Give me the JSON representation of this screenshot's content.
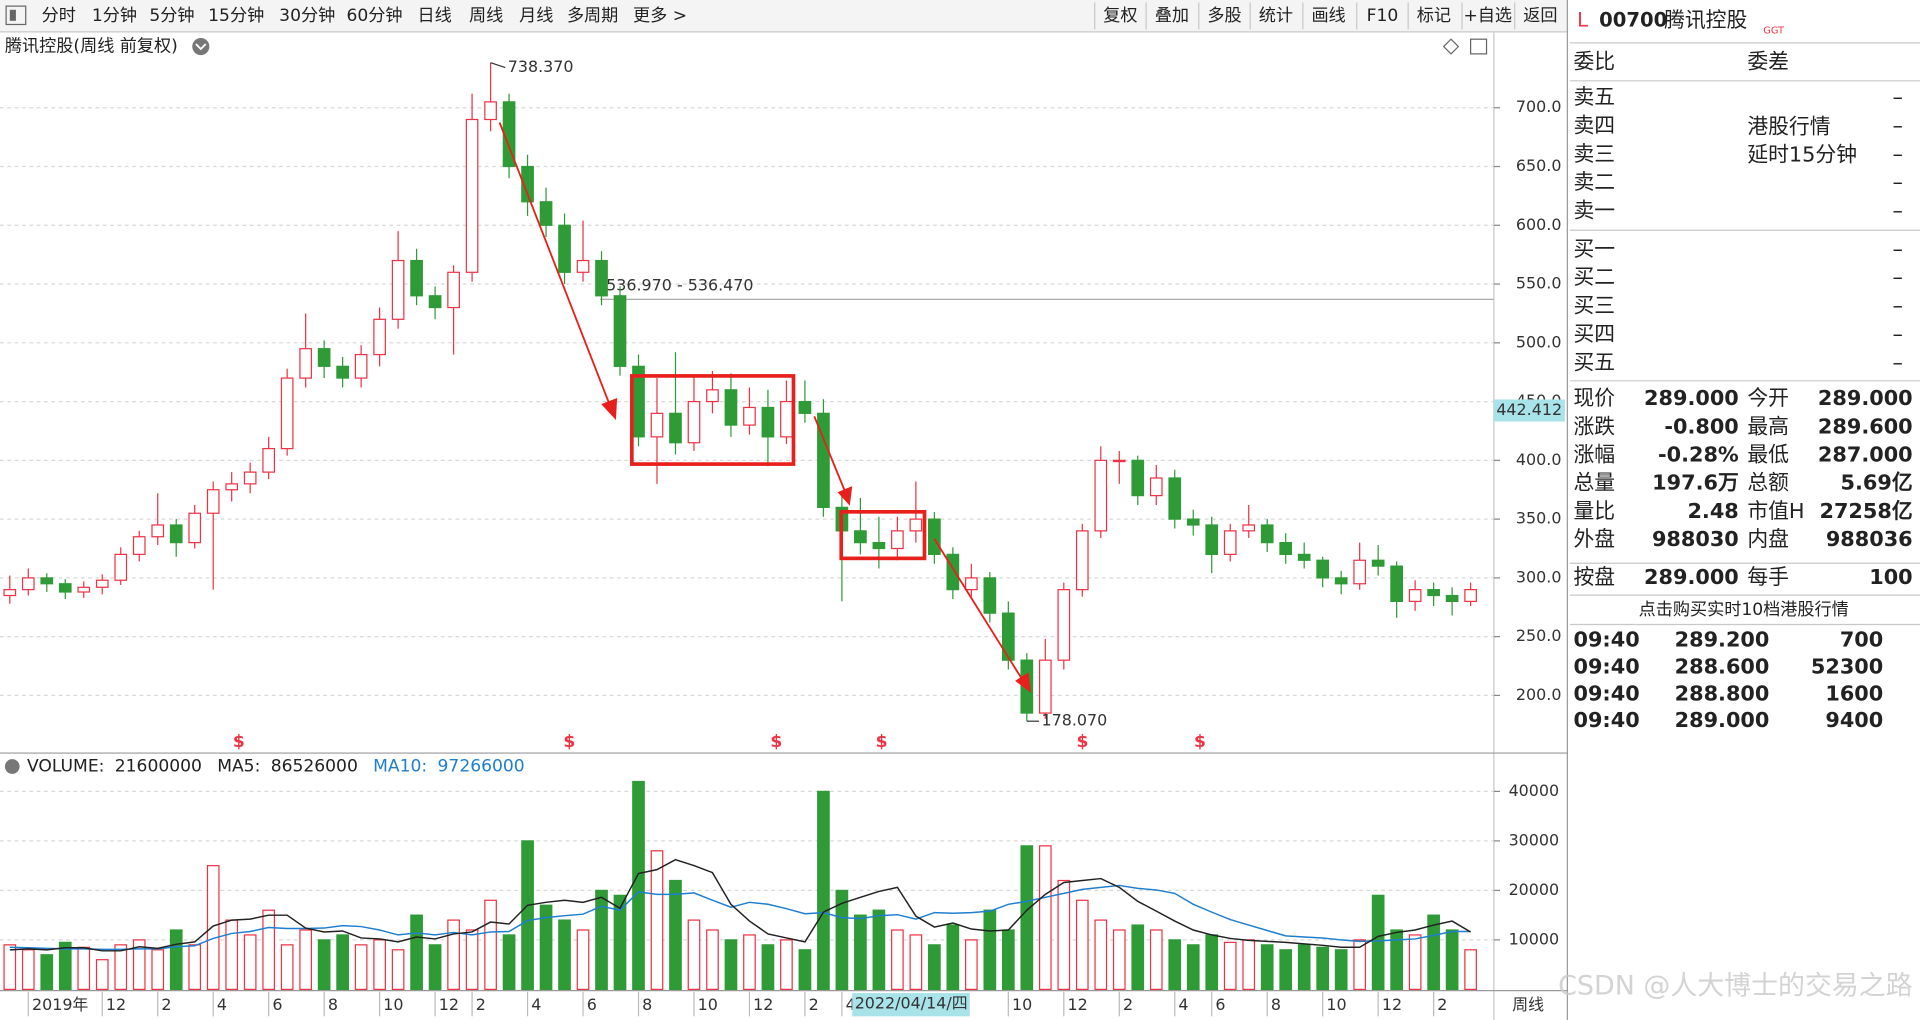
{
  "toolbar": {
    "periods": [
      "分时",
      "1分钟",
      "5分钟",
      "15分钟",
      "30分钟",
      "60分钟",
      "日线",
      "周线",
      "月线",
      "多周期",
      "更多 >"
    ],
    "active_period": "周线",
    "buttons": [
      "复权",
      "叠加",
      "多股",
      "统计",
      "画线",
      "F10",
      "标记",
      "+自选",
      "返回"
    ]
  },
  "chart_data": {
    "type": "candlestick",
    "title": "腾讯控股(周线 前复权)",
    "up_color": "#ee3344",
    "down_color": "#2e9b36",
    "grid": true,
    "categories": [
      null,
      "2019年",
      null,
      null,
      null,
      "12",
      null,
      null,
      "2",
      null,
      null,
      "4",
      null,
      null,
      "6",
      null,
      null,
      "8",
      null,
      null,
      "10",
      null,
      null,
      "12",
      null,
      "2",
      null,
      null,
      "4",
      null,
      null,
      "6",
      null,
      null,
      "8",
      null,
      null,
      "10",
      null,
      null,
      "12",
      null,
      null,
      "2",
      null,
      "4",
      null,
      null,
      null,
      null,
      null,
      null,
      null,
      null,
      "10",
      null,
      null,
      "12",
      null,
      null,
      "2",
      null,
      null,
      "4",
      null,
      "6",
      null,
      null,
      "8",
      null,
      null,
      "10",
      null,
      null,
      "12",
      null,
      null,
      "2",
      null,
      null
    ],
    "crosshair_date": "2022/04/14/四",
    "period_label": "周线",
    "ylim": [
      152,
      762.5
    ],
    "yticks": [
      {
        "value": 200,
        "label": "200.0"
      },
      {
        "value": 250,
        "label": "250.0"
      },
      {
        "value": 300,
        "label": "300.0"
      },
      {
        "value": 350,
        "label": "350.0"
      },
      {
        "value": 400,
        "label": "400.0"
      },
      {
        "value": 450,
        "label": "450.0"
      },
      {
        "value": 500,
        "label": "500.0"
      },
      {
        "value": 550,
        "label": "550.0"
      },
      {
        "value": 600,
        "label": "600.0"
      },
      {
        "value": 650,
        "label": "650.0"
      },
      {
        "value": 700,
        "label": "700.0"
      }
    ],
    "ohlc": [
      [
        285,
        302,
        278,
        290
      ],
      [
        290,
        308,
        285,
        300
      ],
      [
        300,
        304,
        288,
        295
      ],
      [
        295,
        299,
        282,
        288
      ],
      [
        288,
        297,
        283,
        292
      ],
      [
        292,
        303,
        286,
        298
      ],
      [
        298,
        326,
        294,
        320
      ],
      [
        320,
        340,
        314,
        335
      ],
      [
        335,
        372,
        328,
        345
      ],
      [
        345,
        350,
        318,
        330
      ],
      [
        330,
        362,
        325,
        355
      ],
      [
        355,
        382,
        290,
        375
      ],
      [
        375,
        390,
        365,
        380
      ],
      [
        380,
        398,
        372,
        390
      ],
      [
        390,
        420,
        384,
        410
      ],
      [
        410,
        478,
        404,
        470
      ],
      [
        470,
        525,
        462,
        495
      ],
      [
        495,
        502,
        470,
        480
      ],
      [
        480,
        488,
        462,
        470
      ],
      [
        470,
        498,
        462,
        490
      ],
      [
        490,
        530,
        480,
        520
      ],
      [
        520,
        595,
        512,
        570
      ],
      [
        570,
        580,
        532,
        540
      ],
      [
        540,
        548,
        520,
        530
      ],
      [
        530,
        566,
        490,
        560
      ],
      [
        560,
        712,
        552,
        690
      ],
      [
        690,
        738.37,
        680,
        705
      ],
      [
        705,
        712,
        640,
        650
      ],
      [
        650,
        660,
        608,
        620
      ],
      [
        620,
        632,
        590,
        600
      ],
      [
        600,
        610,
        550,
        560
      ],
      [
        560,
        604,
        552,
        570
      ],
      [
        570,
        578,
        532,
        540
      ],
      [
        540,
        548,
        472,
        480
      ],
      [
        480,
        490,
        412,
        420
      ],
      [
        420,
        470,
        380,
        440
      ],
      [
        440,
        492,
        405,
        415
      ],
      [
        415,
        472,
        408,
        450
      ],
      [
        450,
        476,
        440,
        460
      ],
      [
        460,
        474,
        420,
        430
      ],
      [
        430,
        462,
        422,
        445
      ],
      [
        445,
        460,
        395,
        420
      ],
      [
        420,
        468,
        414,
        450
      ],
      [
        450,
        468,
        432,
        440
      ],
      [
        440,
        452,
        352,
        360
      ],
      [
        360,
        372,
        280,
        340
      ],
      [
        340,
        368,
        320,
        330
      ],
      [
        330,
        352,
        308,
        325
      ],
      [
        325,
        352,
        315,
        340
      ],
      [
        340,
        382,
        330,
        350
      ],
      [
        350,
        356,
        312,
        320
      ],
      [
        320,
        326,
        282,
        290
      ],
      [
        290,
        312,
        284,
        300
      ],
      [
        300,
        305,
        262,
        270
      ],
      [
        270,
        280,
        222,
        230
      ],
      [
        230,
        236,
        178.07,
        185
      ],
      [
        185,
        248,
        180,
        230
      ],
      [
        230,
        296,
        222,
        290
      ],
      [
        290,
        346,
        284,
        340
      ],
      [
        340,
        412,
        334,
        400
      ],
      [
        400,
        408,
        380,
        400
      ],
      [
        400,
        404,
        362,
        370
      ],
      [
        370,
        396,
        362,
        385
      ],
      [
        385,
        392,
        342,
        350
      ],
      [
        350,
        358,
        336,
        345
      ],
      [
        345,
        352,
        304,
        320
      ],
      [
        320,
        346,
        314,
        340
      ],
      [
        340,
        362,
        334,
        345
      ],
      [
        345,
        350,
        322,
        330
      ],
      [
        330,
        338,
        312,
        320
      ],
      [
        320,
        330,
        308,
        315
      ],
      [
        315,
        318,
        292,
        300
      ],
      [
        300,
        306,
        286,
        295
      ],
      [
        295,
        330,
        290,
        315
      ],
      [
        315,
        328,
        302,
        310
      ],
      [
        310,
        314,
        266,
        280
      ],
      [
        280,
        298,
        272,
        290
      ],
      [
        290,
        296,
        276,
        285
      ],
      [
        285,
        292,
        268,
        280
      ],
      [
        280,
        296,
        276,
        290
      ]
    ],
    "volume_ylim": [
      0,
      47500
    ],
    "volume_yticks": [
      10000,
      20000,
      30000,
      40000
    ],
    "volume": [
      9000,
      8000,
      7000,
      9500,
      8500,
      6000,
      9000,
      10000,
      8000,
      12000,
      9000,
      25000,
      14000,
      11000,
      16000,
      9000,
      12000,
      10000,
      11000,
      9000,
      10000,
      8000,
      15000,
      9000,
      14000,
      12000,
      18000,
      11000,
      30000,
      17000,
      14000,
      12000,
      20000,
      19000,
      42000,
      28000,
      22000,
      14000,
      12000,
      10000,
      11000,
      9000,
      10000,
      8000,
      40000,
      20000,
      15000,
      16000,
      12000,
      11000,
      9000,
      13000,
      10000,
      16000,
      12000,
      29000,
      29000,
      22000,
      18000,
      14000,
      12000,
      13000,
      12000,
      10000,
      9000,
      11000,
      9500,
      10000,
      9000,
      8000,
      9000,
      8500,
      8000,
      10000,
      19000,
      12000,
      11000,
      15000,
      12000,
      8000
    ],
    "volume_ma5_color": "#222222",
    "volume_ma10_color": "#1e7fd0",
    "volume_ma5": [
      8000,
      8200,
      8000,
      8400,
      8400,
      7800,
      7800,
      8600,
      8300,
      9100,
      9600,
      12800,
      14000,
      14200,
      15000,
      15000,
      12400,
      11600,
      11800,
      10400,
      10200,
      9600,
      10600,
      10200,
      11200,
      11600,
      13600,
      13200,
      17000,
      17600,
      18000,
      17600,
      18600,
      16400,
      23400,
      24200,
      26200,
      25000,
      23600,
      17200,
      13800,
      11200,
      10400,
      9600,
      15600,
      17400,
      18600,
      19800,
      20600,
      14800,
      12600,
      13400,
      12200,
      11800,
      12000,
      16000,
      19200,
      21600,
      22000,
      22400,
      20600,
      17800,
      15800,
      13800,
      12000,
      11000,
      10300,
      9900,
      9700,
      9500,
      9200,
      8900,
      8500,
      8500,
      10700,
      11500,
      12000,
      13000,
      13800,
      11600
    ],
    "volume_ma10": [
      8500,
      8400,
      8300,
      8200,
      8200,
      8100,
      8100,
      8200,
      8200,
      8600,
      8800,
      10300,
      11300,
      11700,
      12500,
      12300,
      12300,
      12400,
      12900,
      12700,
      12000,
      11000,
      11400,
      11000,
      11500,
      11000,
      11600,
      11700,
      13900,
      14500,
      14900,
      15200,
      16800,
      16000,
      19700,
      19200,
      19200,
      19500,
      18000,
      16600,
      17600,
      17200,
      16300,
      15300,
      15500,
      14500,
      14300,
      14900,
      15100,
      14200,
      15500,
      15400,
      15500,
      15800,
      17200,
      17800,
      18600,
      19400,
      20200,
      20600,
      21000,
      20400,
      20100,
      19400,
      17200,
      15600,
      14100,
      13000,
      11900,
      10800,
      10600,
      10400,
      10000,
      9700,
      9800,
      10000,
      10200,
      10900,
      11700,
      11700
    ],
    "volume_header": {
      "volume_label": "VOLUME:",
      "volume": 21600000,
      "ma5_label": "MA5:",
      "ma5": 86526000,
      "ma10_label": "MA10:",
      "ma10": 97266000
    },
    "peak_label": {
      "value": 738.37,
      "label": "738.370"
    },
    "trough_label": {
      "value": 178.07,
      "label": "178.070"
    },
    "level_line": {
      "value": 536.97,
      "label": "536.970 - 536.470"
    },
    "cursor_price": 442.412,
    "event_marks": [
      "$",
      "$",
      "$",
      "$",
      "$",
      "$"
    ]
  },
  "quote": {
    "flag": "L",
    "code": "00700",
    "name": "腾讯控股",
    "tag": "GGT"
  },
  "order_book": {
    "ratio_label": "委比",
    "diff_label": "委差",
    "sell": [
      [
        "卖五",
        "–"
      ],
      [
        "卖四",
        "–"
      ],
      [
        "卖三",
        "–"
      ],
      [
        "卖二",
        "–"
      ],
      [
        "卖一",
        "–"
      ]
    ],
    "notice": [
      "港股行情",
      "延时15分钟"
    ],
    "buy": [
      [
        "买一",
        "–"
      ],
      [
        "买二",
        "–"
      ],
      [
        "买三",
        "–"
      ],
      [
        "买四",
        "–"
      ],
      [
        "买五",
        "–"
      ]
    ]
  },
  "stats": [
    [
      {
        "label": "现价",
        "value": "289.000",
        "color": "#2e9b36"
      },
      {
        "label": "今开",
        "value": "289.000",
        "color": "#2e9b36"
      }
    ],
    [
      {
        "label": "涨跌",
        "value": "-0.800",
        "color": "#2e9b36"
      },
      {
        "label": "最高",
        "value": "289.600",
        "color": "#2e9b36"
      }
    ],
    [
      {
        "label": "涨幅",
        "value": "-0.28%",
        "color": "#2e9b36"
      },
      {
        "label": "最低",
        "value": "287.000",
        "color": "#2e9b36"
      }
    ],
    [
      {
        "label": "总量",
        "value": "197.6万",
        "color": "#222222"
      },
      {
        "label": "总额",
        "value": "5.69亿",
        "color": "#222222"
      }
    ],
    [
      {
        "label": "量比",
        "value": "2.48",
        "color": "#ee3344"
      },
      {
        "label": "市值H",
        "value": "27258亿",
        "color": "#222222"
      }
    ],
    [
      {
        "label": "外盘",
        "value": "988030",
        "color": "#ee3344"
      },
      {
        "label": "内盘",
        "value": "988036",
        "color": "#2e9b36"
      }
    ],
    [
      {
        "label": "按盘",
        "value": "289.000",
        "color": "#2e9b36"
      },
      {
        "label": "每手",
        "value": "100",
        "color": "#222222"
      }
    ]
  ],
  "promo": "点击购买实时10档港股行情",
  "trades": [
    {
      "time": "09:40",
      "price": "289.200",
      "price_color": "#2e9b36",
      "volume": "700",
      "volume_color": "#222222"
    },
    {
      "time": "09:40",
      "price": "288.600",
      "price_color": "#2e9b36",
      "volume": "52300",
      "volume_color": "#b020c0"
    },
    {
      "time": "09:40",
      "price": "288.800",
      "price_color": "#2e9b36",
      "volume": "1600",
      "volume_color": "#222222"
    },
    {
      "time": "09:40",
      "price": "289.000",
      "price_color": "#2e9b36",
      "volume": "9400",
      "volume_color": "#222222"
    }
  ],
  "watermark": "CSDN @人大博士的交易之路"
}
